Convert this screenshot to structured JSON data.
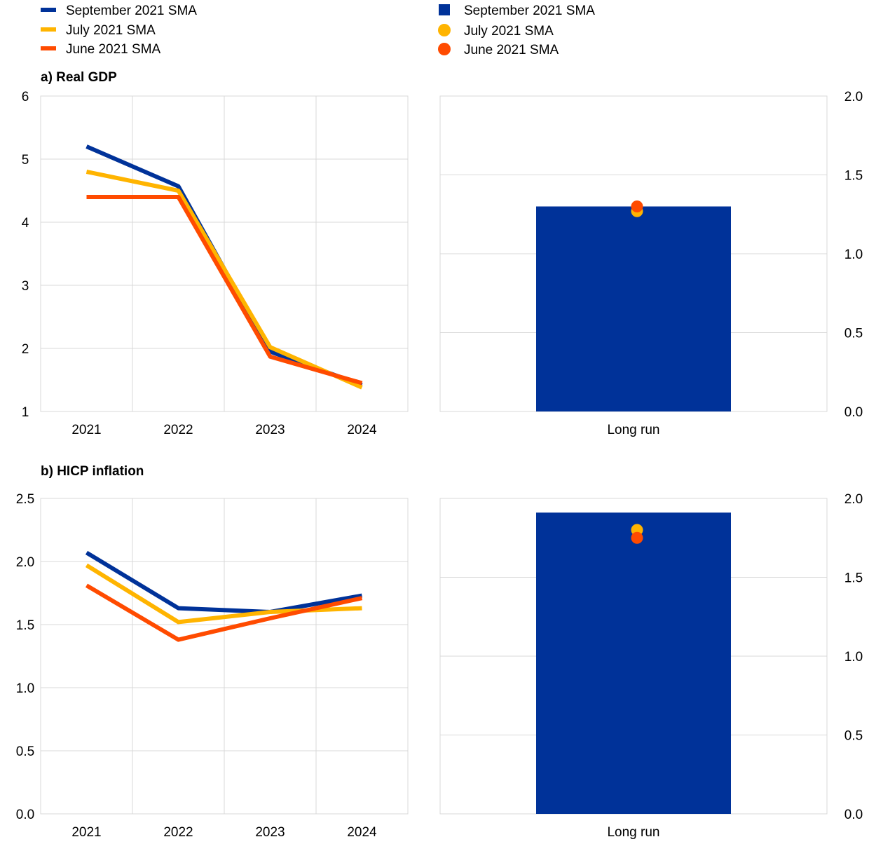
{
  "colors": {
    "september": "#003299",
    "july": "#ffb400",
    "june": "#ff4b00"
  },
  "legend": {
    "lines": [
      {
        "label": "September 2021 SMA",
        "color": "#003299"
      },
      {
        "label": "July 2021 SMA",
        "color": "#ffb400"
      },
      {
        "label": "June 2021 SMA",
        "color": "#ff4b00"
      }
    ],
    "markers": [
      {
        "label": "September 2021 SMA",
        "color": "#003299",
        "shape": "square"
      },
      {
        "label": "July 2021 SMA",
        "color": "#ffb400",
        "shape": "circle"
      },
      {
        "label": "June 2021 SMA",
        "color": "#ff4b00",
        "shape": "circle"
      }
    ]
  },
  "chart_data": [
    {
      "type": "line",
      "title": "a) Real GDP",
      "categories": [
        "2021",
        "2022",
        "2023",
        "2024"
      ],
      "ylim": [
        1,
        6
      ],
      "yticks": [
        "1",
        "2",
        "3",
        "4",
        "5",
        "6"
      ],
      "grid": true,
      "series": [
        {
          "name": "September 2021 SMA",
          "color": "#003299",
          "values": [
            5.2,
            4.57,
            1.95,
            1.42
          ]
        },
        {
          "name": "July 2021 SMA",
          "color": "#ffb400",
          "values": [
            4.8,
            4.5,
            2.02,
            1.38
          ]
        },
        {
          "name": "June 2021 SMA",
          "color": "#ff4b00",
          "values": [
            4.4,
            4.4,
            1.87,
            1.45
          ]
        }
      ]
    },
    {
      "type": "bar",
      "categories": [
        "Long run"
      ],
      "ylim": [
        0,
        2.0
      ],
      "yticks": [
        "0.0",
        "0.5",
        "1.0",
        "1.5",
        "2.0"
      ],
      "axis_side": "right",
      "grid": true,
      "bar": {
        "name": "September 2021 SMA",
        "color": "#003299",
        "value": 1.3
      },
      "points": [
        {
          "name": "July 2021 SMA",
          "color": "#ffb400",
          "value": 1.27
        },
        {
          "name": "June 2021 SMA",
          "color": "#ff4b00",
          "value": 1.3
        }
      ]
    },
    {
      "type": "line",
      "title": "b) HICP inflation",
      "categories": [
        "2021",
        "2022",
        "2023",
        "2024"
      ],
      "ylim": [
        0,
        2.5
      ],
      "yticks": [
        "0.0",
        "0.5",
        "1.0",
        "1.5",
        "2.0",
        "2.5"
      ],
      "grid": true,
      "series": [
        {
          "name": "September 2021 SMA",
          "color": "#003299",
          "values": [
            2.07,
            1.63,
            1.6,
            1.73
          ]
        },
        {
          "name": "July 2021 SMA",
          "color": "#ffb400",
          "values": [
            1.97,
            1.52,
            1.6,
            1.63
          ]
        },
        {
          "name": "June 2021 SMA",
          "color": "#ff4b00",
          "values": [
            1.81,
            1.38,
            1.55,
            1.71
          ]
        }
      ]
    },
    {
      "type": "bar",
      "categories": [
        "Long run"
      ],
      "ylim": [
        0,
        2.0
      ],
      "yticks": [
        "0.0",
        "0.5",
        "1.0",
        "1.5",
        "2.0"
      ],
      "axis_side": "right",
      "grid": true,
      "bar": {
        "name": "September 2021 SMA",
        "color": "#003299",
        "value": 1.91
      },
      "points": [
        {
          "name": "July 2021 SMA",
          "color": "#ffb400",
          "value": 1.8
        },
        {
          "name": "June 2021 SMA",
          "color": "#ff4b00",
          "value": 1.75
        }
      ]
    }
  ]
}
